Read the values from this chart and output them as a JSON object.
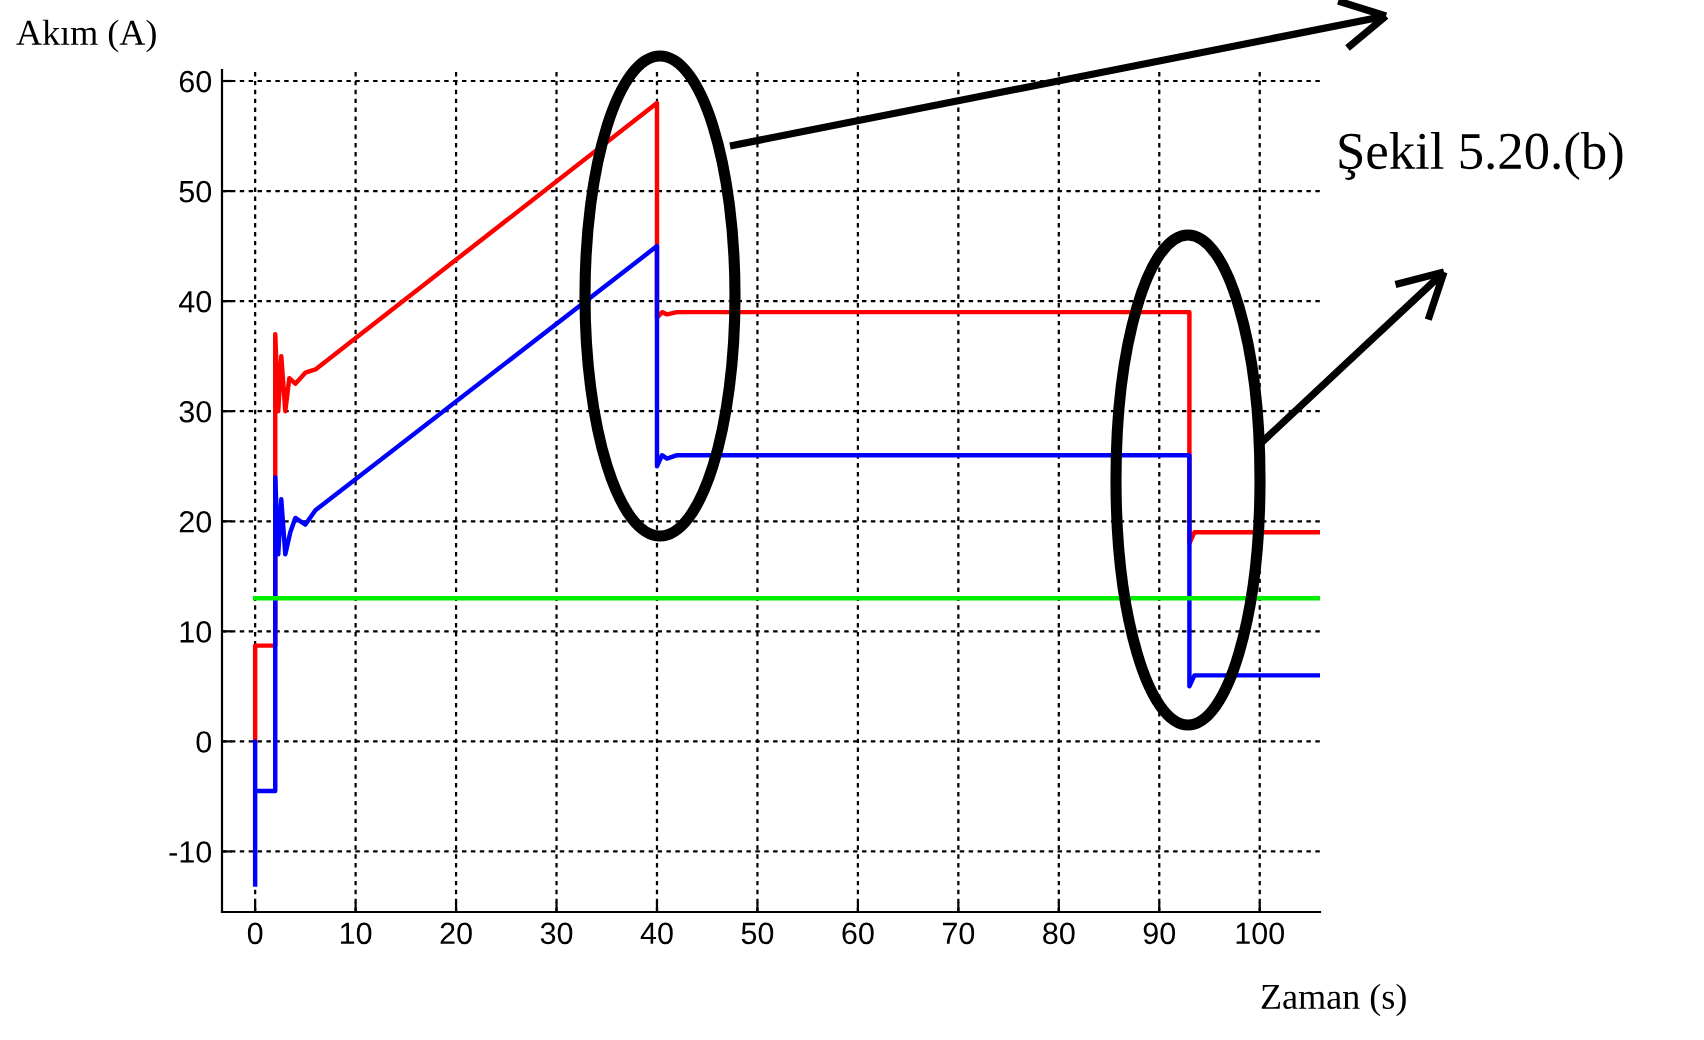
{
  "chart_data": {
    "type": "line",
    "xlabel": "Zaman (s)",
    "ylabel": "Akım (A)",
    "xlim": [
      -3.3,
      106
    ],
    "ylim": [
      -15.5,
      61
    ],
    "xticks": [
      0,
      10,
      20,
      30,
      40,
      50,
      60,
      70,
      80,
      90,
      100
    ],
    "yticks": [
      -10,
      0,
      10,
      20,
      30,
      40,
      50,
      60
    ],
    "grid": true,
    "legend": false,
    "line_style": "solid",
    "marker": "none",
    "series": [
      {
        "color": "#ff0000",
        "x": [
          0,
          0,
          2,
          2,
          2.3,
          2.6,
          3,
          3.4,
          4,
          5,
          6,
          40,
          40,
          40.5,
          41,
          42,
          93,
          93,
          93.5,
          106
        ],
        "values": [
          0,
          8.7,
          8.7,
          37,
          30,
          35,
          30,
          33,
          32.5,
          33.5,
          33.8,
          58,
          38.5,
          39,
          38.8,
          39,
          39,
          18,
          19,
          19
        ]
      },
      {
        "color": "#0000ff",
        "x": [
          0,
          0,
          0,
          2,
          2,
          2.3,
          2.6,
          3,
          3.5,
          4,
          5,
          6,
          40,
          40,
          40.5,
          41,
          42,
          93,
          93,
          93.5,
          106
        ],
        "values": [
          -13,
          0,
          -4.5,
          -4.5,
          24,
          17,
          22,
          17,
          19,
          20.3,
          19.7,
          21,
          45,
          25,
          26,
          25.7,
          26,
          26,
          5,
          6,
          6
        ]
      },
      {
        "color": "#00ee00",
        "x": [
          0,
          106
        ],
        "values": [
          13,
          13
        ]
      }
    ],
    "annotations": [
      "Şekil 5.20.(b)"
    ]
  }
}
